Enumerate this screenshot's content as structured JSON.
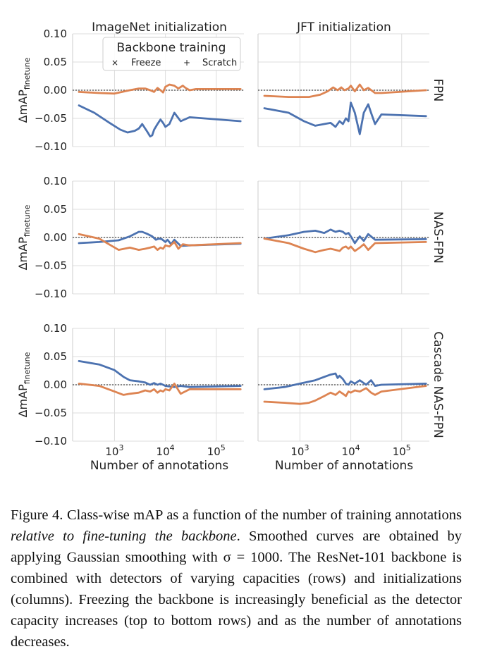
{
  "figure": {
    "columns": [
      "ImageNet initialization",
      "JFT initialization"
    ],
    "rows": [
      "FPN",
      "NAS-FPN",
      "Cascade NAS-FPN"
    ],
    "ylabel_main": "ΔmAP",
    "ylabel_sub": "finetune",
    "xlabel": "Number of annotations",
    "legend": {
      "title": "Backbone training",
      "freeze": "Freeze",
      "scratch": "Scratch"
    }
  },
  "colors": {
    "freeze": "#4c72b0",
    "scratch": "#dd8452"
  },
  "chart_data": {
    "type": "line",
    "title": "",
    "xlabel": "Number of annotations",
    "ylabel": "ΔmAP_finetune",
    "xscale": "log",
    "xlim": [
      150,
      350000
    ],
    "ylim": [
      -0.1,
      0.1
    ],
    "yticks": [
      -0.1,
      -0.05,
      0.0,
      0.05,
      0.1
    ],
    "ytick_labels": [
      "−0.10",
      "−0.05",
      "0.00",
      "0.05",
      "0.10"
    ],
    "xtick_labels": [
      {
        "value": 1000,
        "base": "10",
        "exp": "3"
      },
      {
        "value": 10000,
        "base": "10",
        "exp": "4"
      },
      {
        "value": 100000,
        "base": "10",
        "exp": "5"
      }
    ],
    "reference_line": 0,
    "panels": [
      {
        "row": "FPN",
        "column": "ImageNet initialization",
        "series": [
          {
            "name": "Freeze",
            "x": [
              200,
              400,
              800,
              1300,
              1800,
              2500,
              3000,
              3500,
              4500,
              5000,
              5500,
              6000,
              7000,
              8000,
              9000,
              10000,
              12000,
              15000,
              20000,
              30000,
              300000
            ],
            "y": [
              -0.027,
              -0.04,
              -0.058,
              -0.07,
              -0.075,
              -0.072,
              -0.068,
              -0.06,
              -0.075,
              -0.082,
              -0.08,
              -0.07,
              -0.06,
              -0.052,
              -0.058,
              -0.065,
              -0.06,
              -0.04,
              -0.055,
              -0.048,
              -0.055
            ]
          },
          {
            "name": "Scratch",
            "x": [
              200,
              500,
              1000,
              2000,
              3000,
              4000,
              5000,
              6000,
              7000,
              8000,
              9000,
              10000,
              12000,
              15000,
              18000,
              22000,
              25000,
              30000,
              40000,
              300000
            ],
            "y": [
              -0.003,
              -0.005,
              -0.006,
              0.0,
              0.003,
              0.003,
              0.0,
              -0.003,
              0.004,
              0.0,
              -0.004,
              0.006,
              0.01,
              0.008,
              0.003,
              0.008,
              0.004,
              0.0,
              0.002,
              0.002
            ]
          }
        ]
      },
      {
        "row": "FPN",
        "column": "JFT initialization",
        "series": [
          {
            "name": "Freeze",
            "x": [
              200,
              600,
              1200,
              2000,
              3000,
              4000,
              5000,
              6000,
              7000,
              8000,
              9000,
              10000,
              12000,
              15000,
              18000,
              22000,
              25000,
              30000,
              40000,
              300000
            ],
            "y": [
              -0.032,
              -0.04,
              -0.055,
              -0.063,
              -0.06,
              -0.058,
              -0.065,
              -0.055,
              -0.06,
              -0.05,
              -0.055,
              -0.022,
              -0.04,
              -0.078,
              -0.04,
              -0.025,
              -0.04,
              -0.06,
              -0.043,
              -0.046
            ]
          },
          {
            "name": "Scratch",
            "x": [
              200,
              600,
              1500,
              2500,
              3500,
              4500,
              5500,
              6500,
              7500,
              9000,
              10000,
              12000,
              15000,
              18000,
              22000,
              30000,
              40000,
              300000
            ],
            "y": [
              -0.01,
              -0.012,
              -0.012,
              -0.008,
              -0.002,
              0.005,
              0.0,
              0.005,
              0.0,
              0.003,
              0.008,
              -0.002,
              0.01,
              0.0,
              0.004,
              -0.005,
              -0.005,
              0.0
            ]
          }
        ]
      },
      {
        "row": "NAS-FPN",
        "column": "ImageNet initialization",
        "series": [
          {
            "name": "Freeze",
            "x": [
              200,
              500,
              1200,
              2000,
              3000,
              3500,
              4500,
              5500,
              6500,
              7500,
              8500,
              10000,
              11000,
              13000,
              15000,
              20000,
              30000,
              300000
            ],
            "y": [
              -0.01,
              -0.008,
              -0.005,
              0.002,
              0.01,
              0.01,
              0.006,
              0.002,
              -0.004,
              -0.002,
              -0.003,
              -0.008,
              -0.004,
              -0.012,
              -0.004,
              -0.015,
              -0.014,
              -0.011
            ]
          },
          {
            "name": "Scratch",
            "x": [
              200,
              500,
              1200,
              2000,
              3000,
              4000,
              5000,
              6000,
              7000,
              8000,
              9000,
              10000,
              12000,
              15000,
              18000,
              22000,
              30000,
              300000
            ],
            "y": [
              0.006,
              -0.002,
              -0.022,
              -0.018,
              -0.022,
              -0.02,
              -0.018,
              -0.016,
              -0.022,
              -0.018,
              -0.02,
              -0.014,
              -0.016,
              -0.008,
              -0.02,
              -0.012,
              -0.014,
              -0.01
            ]
          }
        ]
      },
      {
        "row": "NAS-FPN",
        "column": "JFT initialization",
        "series": [
          {
            "name": "Freeze",
            "x": [
              200,
              600,
              1200,
              2000,
              3000,
              4000,
              5000,
              6000,
              7000,
              8000,
              9000,
              10000,
              12000,
              15000,
              18000,
              22000,
              30000,
              300000
            ],
            "y": [
              -0.002,
              0.004,
              0.01,
              0.012,
              0.008,
              0.014,
              0.01,
              0.012,
              0.01,
              0.006,
              0.008,
              0.002,
              -0.01,
              0.002,
              -0.006,
              0.006,
              -0.004,
              -0.003
            ]
          },
          {
            "name": "Scratch",
            "x": [
              200,
              600,
              1200,
              2000,
              3000,
              4000,
              5000,
              6000,
              7000,
              8000,
              9000,
              10000,
              12000,
              15000,
              18000,
              22000,
              30000,
              300000
            ],
            "y": [
              -0.002,
              -0.01,
              -0.02,
              -0.026,
              -0.022,
              -0.02,
              -0.022,
              -0.024,
              -0.018,
              -0.016,
              -0.02,
              -0.016,
              -0.024,
              -0.018,
              -0.012,
              -0.022,
              -0.01,
              -0.008
            ]
          }
        ]
      },
      {
        "row": "Cascade NAS-FPN",
        "column": "ImageNet initialization",
        "series": [
          {
            "name": "Freeze",
            "x": [
              200,
              500,
              1000,
              1500,
              2000,
              3000,
              4000,
              5000,
              6000,
              7000,
              8000,
              9000,
              10000,
              12000,
              15000,
              20000,
              30000,
              300000
            ],
            "y": [
              0.042,
              0.036,
              0.026,
              0.014,
              0.008,
              0.006,
              0.004,
              0.0,
              0.003,
              0.0,
              0.002,
              0.0,
              -0.002,
              -0.003,
              -0.004,
              -0.002,
              -0.004,
              -0.002
            ]
          },
          {
            "name": "Scratch",
            "x": [
              200,
              500,
              1000,
              1500,
              2000,
              3000,
              4000,
              5000,
              6000,
              7000,
              8000,
              9000,
              10000,
              12000,
              15000,
              20000,
              30000,
              300000
            ],
            "y": [
              0.002,
              -0.002,
              -0.012,
              -0.018,
              -0.016,
              -0.014,
              -0.01,
              -0.012,
              -0.008,
              -0.014,
              -0.01,
              -0.012,
              -0.008,
              -0.01,
              0.002,
              -0.016,
              -0.008,
              -0.008
            ]
          }
        ]
      },
      {
        "row": "Cascade NAS-FPN",
        "column": "JFT initialization",
        "series": [
          {
            "name": "Freeze",
            "x": [
              200,
              500,
              1000,
              2000,
              3000,
              4000,
              5000,
              5500,
              6000,
              7000,
              8000,
              9000,
              10000,
              12000,
              15000,
              20000,
              25000,
              30000,
              40000,
              300000
            ],
            "y": [
              -0.008,
              -0.004,
              0.002,
              0.008,
              0.014,
              0.018,
              0.02,
              0.012,
              0.016,
              0.01,
              0.002,
              0.0,
              0.006,
              0.002,
              0.008,
              0.0,
              0.008,
              -0.002,
              0.0,
              0.002
            ]
          },
          {
            "name": "Scratch",
            "x": [
              200,
              500,
              1000,
              1500,
              2000,
              3000,
              4000,
              5000,
              6000,
              7000,
              8000,
              9000,
              10000,
              12000,
              15000,
              20000,
              25000,
              30000,
              40000,
              300000
            ],
            "y": [
              -0.03,
              -0.032,
              -0.034,
              -0.032,
              -0.028,
              -0.02,
              -0.014,
              -0.018,
              -0.012,
              -0.016,
              -0.02,
              -0.012,
              -0.014,
              -0.01,
              -0.012,
              -0.006,
              -0.014,
              -0.018,
              -0.012,
              -0.002
            ]
          }
        ]
      }
    ]
  },
  "caption": {
    "label": "Figure 4.",
    "text_before": " Class-wise mAP as a function of the number of training annotations ",
    "emphasis": "relative to fine-tuning the backbone",
    "text_after": ". Smoothed curves are obtained by applying Gaussian smoothing with σ = 1000. The ResNet-101 backbone is combined with detectors of varying capacities (rows) and initializations (columns). Freezing the backbone is increasingly beneficial as the detector capacity increases (top to bottom rows) and as the number of annotations decreases."
  }
}
